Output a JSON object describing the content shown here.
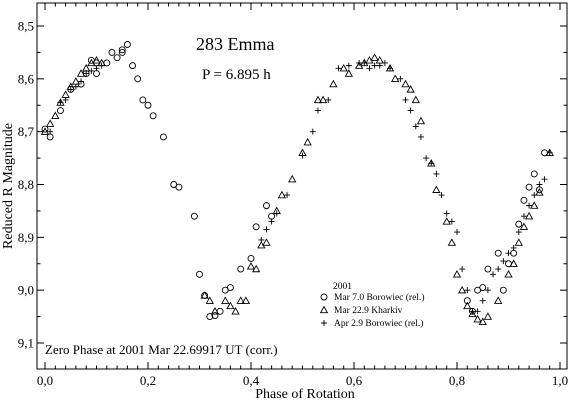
{
  "chart_data": {
    "type": "scatter",
    "title": "283 Emma",
    "period_label": "P = 6.895 h",
    "xlabel": "Phase of Rotation",
    "ylabel": "Reduced R Magnitude",
    "xlim": [
      0.0,
      1.0
    ],
    "ylim": [
      8.5,
      9.15
    ],
    "y_inverted": true,
    "x_ticks": [
      "0,0",
      "0,2",
      "0,4",
      "0,6",
      "0,8",
      "1,0"
    ],
    "x_tick_values": [
      0.0,
      0.2,
      0.4,
      0.6,
      0.8,
      1.0
    ],
    "y_ticks": [
      "8,5",
      "8,6",
      "8,7",
      "8,8",
      "8,9",
      "9,0",
      "9,1"
    ],
    "y_tick_values": [
      8.5,
      8.6,
      8.7,
      8.8,
      8.9,
      9.0,
      9.1
    ],
    "grid": false,
    "legend_title": "2001",
    "legend_position": "bottom-right",
    "annotation": "Zero Phase at 2001 Mar 22.69917 UT (corr.)",
    "series": [
      {
        "name": "Mar 7.0 Borowiec (rel.)",
        "marker": "circle",
        "points": [
          [
            0.0,
            8.695
          ],
          [
            0.01,
            8.71
          ],
          [
            0.03,
            8.66
          ],
          [
            0.05,
            8.62
          ],
          [
            0.07,
            8.61
          ],
          [
            0.08,
            8.59
          ],
          [
            0.09,
            8.565
          ],
          [
            0.1,
            8.57
          ],
          [
            0.1,
            8.59
          ],
          [
            0.12,
            8.57
          ],
          [
            0.13,
            8.55
          ],
          [
            0.14,
            8.56
          ],
          [
            0.15,
            8.545
          ],
          [
            0.15,
            8.55
          ],
          [
            0.16,
            8.535
          ],
          [
            0.17,
            8.575
          ],
          [
            0.18,
            8.6
          ],
          [
            0.19,
            8.64
          ],
          [
            0.2,
            8.65
          ],
          [
            0.21,
            8.67
          ],
          [
            0.23,
            8.71
          ],
          [
            0.25,
            8.8
          ],
          [
            0.26,
            8.805
          ],
          [
            0.29,
            8.86
          ],
          [
            0.3,
            8.97
          ],
          [
            0.31,
            9.01
          ],
          [
            0.32,
            9.05
          ],
          [
            0.33,
            9.048
          ],
          [
            0.34,
            9.04
          ],
          [
            0.35,
            9.0
          ],
          [
            0.36,
            8.995
          ],
          [
            0.38,
            8.96
          ],
          [
            0.4,
            8.94
          ],
          [
            0.41,
            8.88
          ],
          [
            0.43,
            8.84
          ],
          [
            0.44,
            8.86
          ],
          [
            0.82,
            9.02
          ],
          [
            0.83,
            9.04
          ],
          [
            0.84,
            9.0
          ],
          [
            0.85,
            8.995
          ],
          [
            0.86,
            8.96
          ],
          [
            0.88,
            8.93
          ],
          [
            0.89,
            9.0
          ],
          [
            0.9,
            8.95
          ],
          [
            0.91,
            8.93
          ],
          [
            0.92,
            8.875
          ],
          [
            0.93,
            8.83
          ],
          [
            0.94,
            8.805
          ],
          [
            0.95,
            8.78
          ],
          [
            0.96,
            8.81
          ],
          [
            0.97,
            8.74
          ]
        ]
      },
      {
        "name": "Mar 22.9 Kharkiv",
        "marker": "triangle",
        "points": [
          [
            0.0,
            8.7
          ],
          [
            0.01,
            8.685
          ],
          [
            0.02,
            8.67
          ],
          [
            0.03,
            8.645
          ],
          [
            0.04,
            8.63
          ],
          [
            0.05,
            8.615
          ],
          [
            0.06,
            8.605
          ],
          [
            0.07,
            8.59
          ],
          [
            0.08,
            8.58
          ],
          [
            0.09,
            8.57
          ],
          [
            0.1,
            8.565
          ],
          [
            0.11,
            8.57
          ],
          [
            0.31,
            9.01
          ],
          [
            0.32,
            9.02
          ],
          [
            0.33,
            9.04
          ],
          [
            0.35,
            9.02
          ],
          [
            0.36,
            9.03
          ],
          [
            0.37,
            9.04
          ],
          [
            0.38,
            9.02
          ],
          [
            0.39,
            9.02
          ],
          [
            0.4,
            8.955
          ],
          [
            0.41,
            8.96
          ],
          [
            0.42,
            8.915
          ],
          [
            0.43,
            8.91
          ],
          [
            0.45,
            8.85
          ],
          [
            0.46,
            8.82
          ],
          [
            0.48,
            8.79
          ],
          [
            0.5,
            8.74
          ],
          [
            0.51,
            8.72
          ],
          [
            0.53,
            8.64
          ],
          [
            0.54,
            8.64
          ],
          [
            0.56,
            8.61
          ],
          [
            0.58,
            8.58
          ],
          [
            0.59,
            8.59
          ],
          [
            0.61,
            8.575
          ],
          [
            0.62,
            8.57
          ],
          [
            0.63,
            8.565
          ],
          [
            0.64,
            8.56
          ],
          [
            0.65,
            8.565
          ],
          [
            0.67,
            8.58
          ],
          [
            0.68,
            8.6
          ],
          [
            0.7,
            8.61
          ],
          [
            0.71,
            8.62
          ],
          [
            0.72,
            8.64
          ],
          [
            0.73,
            8.68
          ],
          [
            0.75,
            8.76
          ],
          [
            0.76,
            8.81
          ],
          [
            0.78,
            8.87
          ],
          [
            0.79,
            8.91
          ],
          [
            0.8,
            8.97
          ],
          [
            0.81,
            9.0
          ],
          [
            0.82,
            9.03
          ],
          [
            0.83,
            9.045
          ],
          [
            0.84,
            9.055
          ],
          [
            0.85,
            9.06
          ],
          [
            0.86,
            9.05
          ],
          [
            0.88,
            9.02
          ],
          [
            0.9,
            8.97
          ],
          [
            0.91,
            8.95
          ],
          [
            0.92,
            8.91
          ],
          [
            0.93,
            8.88
          ],
          [
            0.94,
            8.86
          ],
          [
            0.95,
            8.84
          ],
          [
            0.96,
            8.815
          ],
          [
            0.98,
            8.74
          ]
        ]
      },
      {
        "name": "Apr 2.9 Borowiec (rel.)",
        "marker": "plus",
        "points": [
          [
            0.01,
            8.7
          ],
          [
            0.03,
            8.645
          ],
          [
            0.04,
            8.64
          ],
          [
            0.05,
            8.62
          ],
          [
            0.06,
            8.615
          ],
          [
            0.07,
            8.605
          ],
          [
            0.08,
            8.59
          ],
          [
            0.09,
            8.585
          ],
          [
            0.1,
            8.58
          ],
          [
            0.11,
            8.575
          ],
          [
            0.42,
            8.905
          ],
          [
            0.43,
            8.885
          ],
          [
            0.44,
            8.87
          ],
          [
            0.45,
            8.855
          ],
          [
            0.47,
            8.82
          ],
          [
            0.5,
            8.745
          ],
          [
            0.52,
            8.7
          ],
          [
            0.53,
            8.66
          ],
          [
            0.55,
            8.64
          ],
          [
            0.57,
            8.58
          ],
          [
            0.59,
            8.575
          ],
          [
            0.61,
            8.57
          ],
          [
            0.62,
            8.57
          ],
          [
            0.63,
            8.58
          ],
          [
            0.64,
            8.575
          ],
          [
            0.65,
            8.575
          ],
          [
            0.66,
            8.57
          ],
          [
            0.67,
            8.58
          ],
          [
            0.69,
            8.6
          ],
          [
            0.7,
            8.64
          ],
          [
            0.71,
            8.66
          ],
          [
            0.72,
            8.69
          ],
          [
            0.73,
            8.71
          ],
          [
            0.74,
            8.75
          ],
          [
            0.75,
            8.76
          ],
          [
            0.76,
            8.78
          ],
          [
            0.77,
            8.82
          ],
          [
            0.78,
            8.855
          ],
          [
            0.79,
            8.87
          ],
          [
            0.8,
            8.89
          ],
          [
            0.81,
            8.96
          ],
          [
            0.82,
            9.0
          ],
          [
            0.83,
            9.04
          ],
          [
            0.84,
            9.04
          ],
          [
            0.85,
            9.02
          ],
          [
            0.86,
            9.0
          ],
          [
            0.87,
            8.97
          ],
          [
            0.88,
            8.96
          ],
          [
            0.89,
            8.945
          ],
          [
            0.9,
            8.93
          ],
          [
            0.91,
            8.92
          ],
          [
            0.92,
            8.89
          ],
          [
            0.93,
            8.86
          ],
          [
            0.94,
            8.84
          ],
          [
            0.95,
            8.82
          ],
          [
            0.96,
            8.8
          ],
          [
            0.97,
            8.79
          ],
          [
            0.98,
            8.74
          ]
        ]
      }
    ]
  }
}
